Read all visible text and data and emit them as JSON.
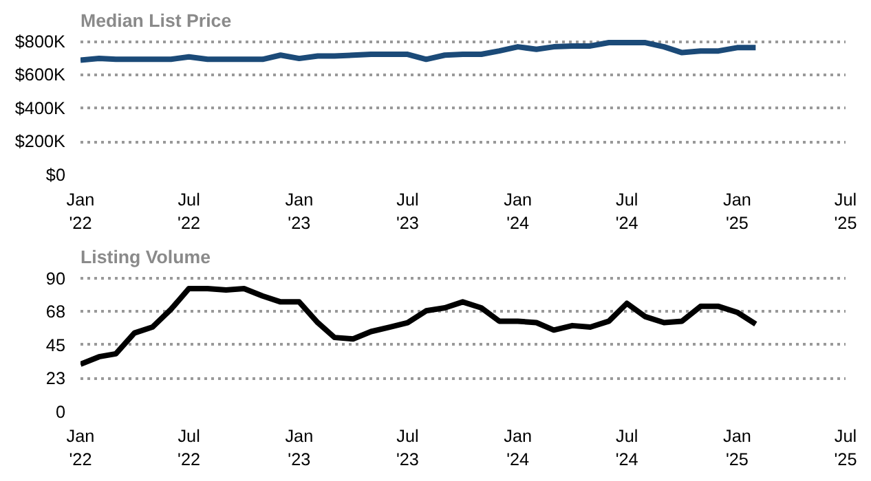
{
  "chart_data": [
    {
      "type": "line",
      "title": "Median List Price",
      "x": [
        "2022-01",
        "2022-02",
        "2022-03",
        "2022-04",
        "2022-05",
        "2022-06",
        "2022-07",
        "2022-08",
        "2022-09",
        "2022-10",
        "2022-11",
        "2022-12",
        "2023-01",
        "2023-02",
        "2023-03",
        "2023-04",
        "2023-05",
        "2023-06",
        "2023-07",
        "2023-08",
        "2023-09",
        "2023-10",
        "2023-11",
        "2023-12",
        "2024-01",
        "2024-02",
        "2024-03",
        "2024-04",
        "2024-05",
        "2024-06",
        "2024-07",
        "2024-08",
        "2024-09",
        "2024-10",
        "2024-11",
        "2024-12",
        "2025-01",
        "2025-02"
      ],
      "series": [
        {
          "color": "#1b4a78",
          "values": [
            690,
            700,
            695,
            695,
            695,
            695,
            710,
            695,
            695,
            695,
            695,
            720,
            700,
            715,
            715,
            720,
            725,
            725,
            725,
            695,
            720,
            725,
            725,
            745,
            770,
            755,
            770,
            775,
            775,
            795,
            795,
            795,
            770,
            735,
            745,
            745,
            765,
            765
          ]
        }
      ],
      "xlim": [
        "2022-01",
        "2025-07"
      ],
      "xticks": [
        {
          "value": "2022-01",
          "label": "Jan\n'22"
        },
        {
          "value": "2022-07",
          "label": "Jul\n'22"
        },
        {
          "value": "2023-01",
          "label": "Jan\n'23"
        },
        {
          "value": "2023-07",
          "label": "Jul\n'23"
        },
        {
          "value": "2024-01",
          "label": "Jan\n'24"
        },
        {
          "value": "2024-07",
          "label": "Jul\n'24"
        },
        {
          "value": "2025-01",
          "label": "Jan\n'25"
        },
        {
          "value": "2025-07",
          "label": "Jul\n'25"
        }
      ],
      "ylim": [
        0,
        800
      ],
      "yticks": [
        {
          "value": 0,
          "label": "$0"
        },
        {
          "value": 200,
          "label": "$200K"
        },
        {
          "value": 400,
          "label": "$400K"
        },
        {
          "value": 600,
          "label": "$600K"
        },
        {
          "value": 800,
          "label": "$800K"
        }
      ],
      "grid": "y",
      "marker": "none",
      "line_style": "solid"
    },
    {
      "type": "line",
      "title": "Listing Volume",
      "x": [
        "2022-01",
        "2022-02",
        "2022-03",
        "2022-04",
        "2022-05",
        "2022-06",
        "2022-07",
        "2022-08",
        "2022-09",
        "2022-10",
        "2022-11",
        "2022-12",
        "2023-01",
        "2023-02",
        "2023-03",
        "2023-04",
        "2023-05",
        "2023-06",
        "2023-07",
        "2023-08",
        "2023-09",
        "2023-10",
        "2023-11",
        "2023-12",
        "2024-01",
        "2024-02",
        "2024-03",
        "2024-04",
        "2024-05",
        "2024-06",
        "2024-07",
        "2024-08",
        "2024-09",
        "2024-10",
        "2024-11",
        "2024-12",
        "2025-01",
        "2025-02"
      ],
      "series": [
        {
          "color": "#000000",
          "values": [
            32,
            37,
            39,
            53,
            57,
            69,
            83,
            83,
            82,
            83,
            78,
            74,
            74,
            60,
            50,
            49,
            54,
            57,
            60,
            68,
            70,
            74,
            70,
            61,
            61,
            60,
            55,
            58,
            57,
            61,
            73,
            64,
            60,
            61,
            71,
            71,
            67,
            59
          ]
        }
      ],
      "xlim": [
        "2022-01",
        "2025-07"
      ],
      "xticks": [
        {
          "value": "2022-01",
          "label": "Jan\n'22"
        },
        {
          "value": "2022-07",
          "label": "Jul\n'22"
        },
        {
          "value": "2023-01",
          "label": "Jan\n'23"
        },
        {
          "value": "2023-07",
          "label": "Jul\n'23"
        },
        {
          "value": "2024-01",
          "label": "Jan\n'24"
        },
        {
          "value": "2024-07",
          "label": "Jul\n'24"
        },
        {
          "value": "2025-01",
          "label": "Jan\n'25"
        },
        {
          "value": "2025-07",
          "label": "Jul\n'25"
        }
      ],
      "ylim": [
        0,
        90
      ],
      "yticks": [
        0,
        {
          "value": 22.5,
          "label": "23"
        },
        45,
        {
          "value": 67.5,
          "label": "68"
        },
        90
      ],
      "grid": "y",
      "marker": "none",
      "line_style": "solid"
    }
  ]
}
